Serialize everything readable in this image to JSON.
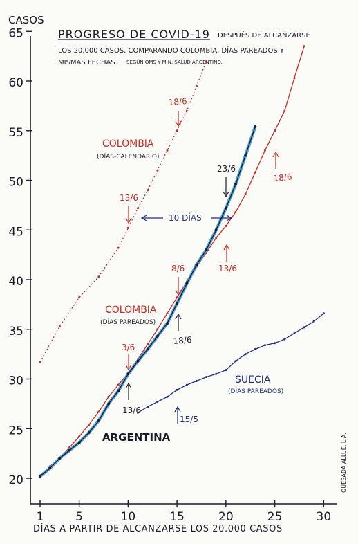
{
  "chart_data": {
    "type": "line",
    "title": "PROGRESO DE COVID-19",
    "title_after": "DESPUÉS DE ALCANZARSE",
    "subtitle_line1": "LOS 20.000 CASOS, COMPARANDO COLOMBIA, DÍAS PAREADOS Y",
    "subtitle_line2": "MISMAS FECHAS.",
    "subtitle_source": "SEGÚN OMS Y MIN. SALUD ARGENTINO.",
    "ylabel": "CASOS",
    "xlabel": "DÍAS A PARTIR DE ALCANZARSE LOS 20.000 CASOS",
    "author": "QUESADA ALLUÉ, L.A.",
    "xlim": [
      0,
      32
    ],
    "ylim": [
      19,
      66
    ],
    "x_ticks": [
      1,
      5,
      10,
      15,
      20,
      25,
      30
    ],
    "y_ticks": [
      20,
      25,
      30,
      35,
      40,
      45,
      50,
      55,
      60,
      65
    ],
    "grid": false,
    "series": [
      {
        "name": "COLOMBIA",
        "sub_label": "(DÍAS-CALENDARIO)",
        "color": "#cc2a22",
        "style": "dotted",
        "x": [
          1,
          3,
          5,
          7,
          9,
          10,
          11,
          12,
          13,
          14,
          15,
          16,
          17,
          18
        ],
        "y": [
          31.7,
          35.3,
          38.2,
          40.3,
          43.2,
          45.2,
          47.2,
          49.0,
          51.0,
          53.0,
          55.0,
          57.0,
          59.5,
          62.0
        ]
      },
      {
        "name": "COLOMBIA",
        "sub_label": "(DÍAS PAREADOS)",
        "color": "#cc2a22",
        "style": "solid",
        "x": [
          1,
          2,
          3,
          4,
          5,
          6,
          7,
          8,
          9,
          10,
          11,
          12,
          13,
          14,
          15,
          16,
          17,
          18,
          19,
          20,
          21,
          22,
          23,
          24,
          25,
          26,
          27,
          28
        ],
        "y": [
          20.1,
          21.2,
          22.0,
          23.1,
          24.2,
          25.4,
          26.7,
          28.2,
          29.4,
          30.6,
          32.0,
          33.5,
          35.0,
          36.6,
          38.2,
          39.8,
          41.3,
          42.7,
          44.2,
          45.4,
          46.8,
          48.6,
          50.8,
          53.0,
          55.0,
          57.0,
          60.3,
          63.5
        ]
      },
      {
        "name": "ARGENTINA",
        "color": "#1a1a2a",
        "highlight_color": "#3a98d6",
        "style": "solid",
        "x": [
          1,
          2,
          3,
          4,
          5,
          6,
          7,
          8,
          9,
          10,
          11,
          12,
          13,
          14,
          15,
          16,
          17,
          18,
          19,
          20,
          21,
          22,
          23
        ],
        "y": [
          20.2,
          21.0,
          22.0,
          22.8,
          23.6,
          24.6,
          25.8,
          27.5,
          28.8,
          30.5,
          31.8,
          33.0,
          34.3,
          35.6,
          37.6,
          39.6,
          41.5,
          43.0,
          45.0,
          47.2,
          49.6,
          52.5,
          55.4
        ]
      },
      {
        "name": "SUECIA",
        "sub_label": "(DÍAS PAREADOS)",
        "color": "#1e2d86",
        "style": "solid",
        "x": [
          11,
          12,
          13,
          14,
          15,
          16,
          17,
          18,
          19,
          20,
          21,
          22,
          23,
          24,
          25,
          26,
          27,
          28,
          29,
          30
        ],
        "y": [
          26.6,
          27.2,
          27.7,
          28.2,
          28.9,
          29.4,
          29.8,
          30.2,
          30.5,
          30.9,
          31.8,
          32.5,
          33.0,
          33.4,
          33.6,
          34.0,
          34.6,
          35.2,
          35.8,
          36.6
        ]
      }
    ],
    "annotations": [
      {
        "text": "18/6",
        "color": "#cc2a22"
      },
      {
        "text": "13/6",
        "color": "#cc2a22"
      },
      {
        "text": "10 DÍAS",
        "color": "#1e2d86"
      },
      {
        "text": "23/6",
        "color": "#1a1a2a"
      },
      {
        "text": "18/6",
        "color": "#cc2a22"
      },
      {
        "text": "8/6",
        "color": "#cc2a22"
      },
      {
        "text": "13/6",
        "color": "#cc2a22"
      },
      {
        "text": "3/6",
        "color": "#cc2a22"
      },
      {
        "text": "18/6",
        "color": "#1a1a2a"
      },
      {
        "text": "13/6",
        "color": "#1a1a2a"
      },
      {
        "text": "15/5",
        "color": "#1e2d86"
      }
    ]
  }
}
